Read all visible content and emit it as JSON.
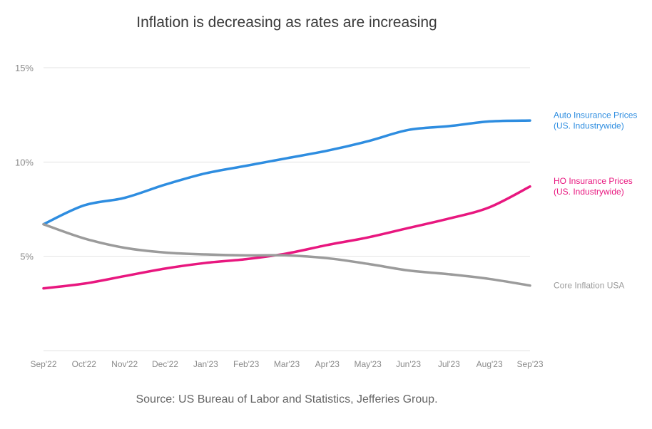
{
  "chart_data": {
    "type": "line",
    "title": "Inflation is decreasing as rates are increasing",
    "source": "Source: US Bureau of Labor and Statistics, Jefferies Group.",
    "categories": [
      "Sep'22",
      "Oct'22",
      "Nov'22",
      "Dec'22",
      "Jan'23",
      "Feb'23",
      "Mar'23",
      "Apr'23",
      "May'23",
      "Jun'23",
      "Jul'23",
      "Aug'23",
      "Sep'23"
    ],
    "y_ticks": [
      {
        "value": 5,
        "label": "5%"
      },
      {
        "value": 10,
        "label": "10%"
      },
      {
        "value": 15,
        "label": "15%"
      }
    ],
    "ylim": [
      0,
      15
    ],
    "grid": true,
    "series": [
      {
        "name_lines": [
          "Auto Insurance Prices",
          "(US. Industrywide)"
        ],
        "color": "#2e8de0",
        "values": [
          6.7,
          7.7,
          8.1,
          8.8,
          9.4,
          9.8,
          10.2,
          10.6,
          11.1,
          11.7,
          11.9,
          12.15,
          12.2
        ]
      },
      {
        "name_lines": [
          "HO Insurance Prices",
          "(US. Industrywide)"
        ],
        "color": "#e8177f",
        "values": [
          3.3,
          3.55,
          3.95,
          4.35,
          4.65,
          4.85,
          5.15,
          5.6,
          6.0,
          6.5,
          7.0,
          7.6,
          8.7
        ]
      },
      {
        "name_lines": [
          "Core Inflation USA"
        ],
        "color": "#9b9b9b",
        "values": [
          6.7,
          5.95,
          5.45,
          5.2,
          5.1,
          5.05,
          5.05,
          4.9,
          4.6,
          4.25,
          4.05,
          3.8,
          3.45
        ]
      }
    ]
  }
}
